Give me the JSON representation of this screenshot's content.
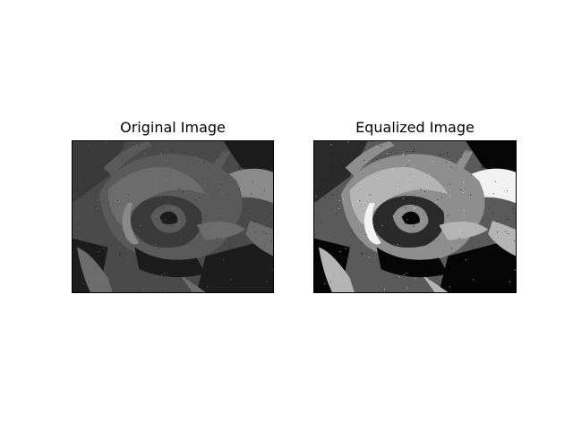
{
  "figure": {
    "panels": [
      {
        "title": "Original Image",
        "image_description_icon": "rose-grayscale-low-contrast",
        "background_color": "#4a4a4a",
        "tones": {
          "dark": "#1c1c1c",
          "mid": "#3a3a3a",
          "petal": "#5a5a5a",
          "petal_light": "#6c6c6c",
          "highlight": "#8a8a8a"
        }
      },
      {
        "title": "Equalized Image",
        "image_description_icon": "rose-grayscale-equalized",
        "background_color": "#5a5a5a",
        "tones": {
          "dark": "#050505",
          "mid": "#2a2a2a",
          "petal": "#8e8e8e",
          "petal_light": "#b4b4b4",
          "highlight": "#f2f2f2"
        }
      }
    ]
  }
}
